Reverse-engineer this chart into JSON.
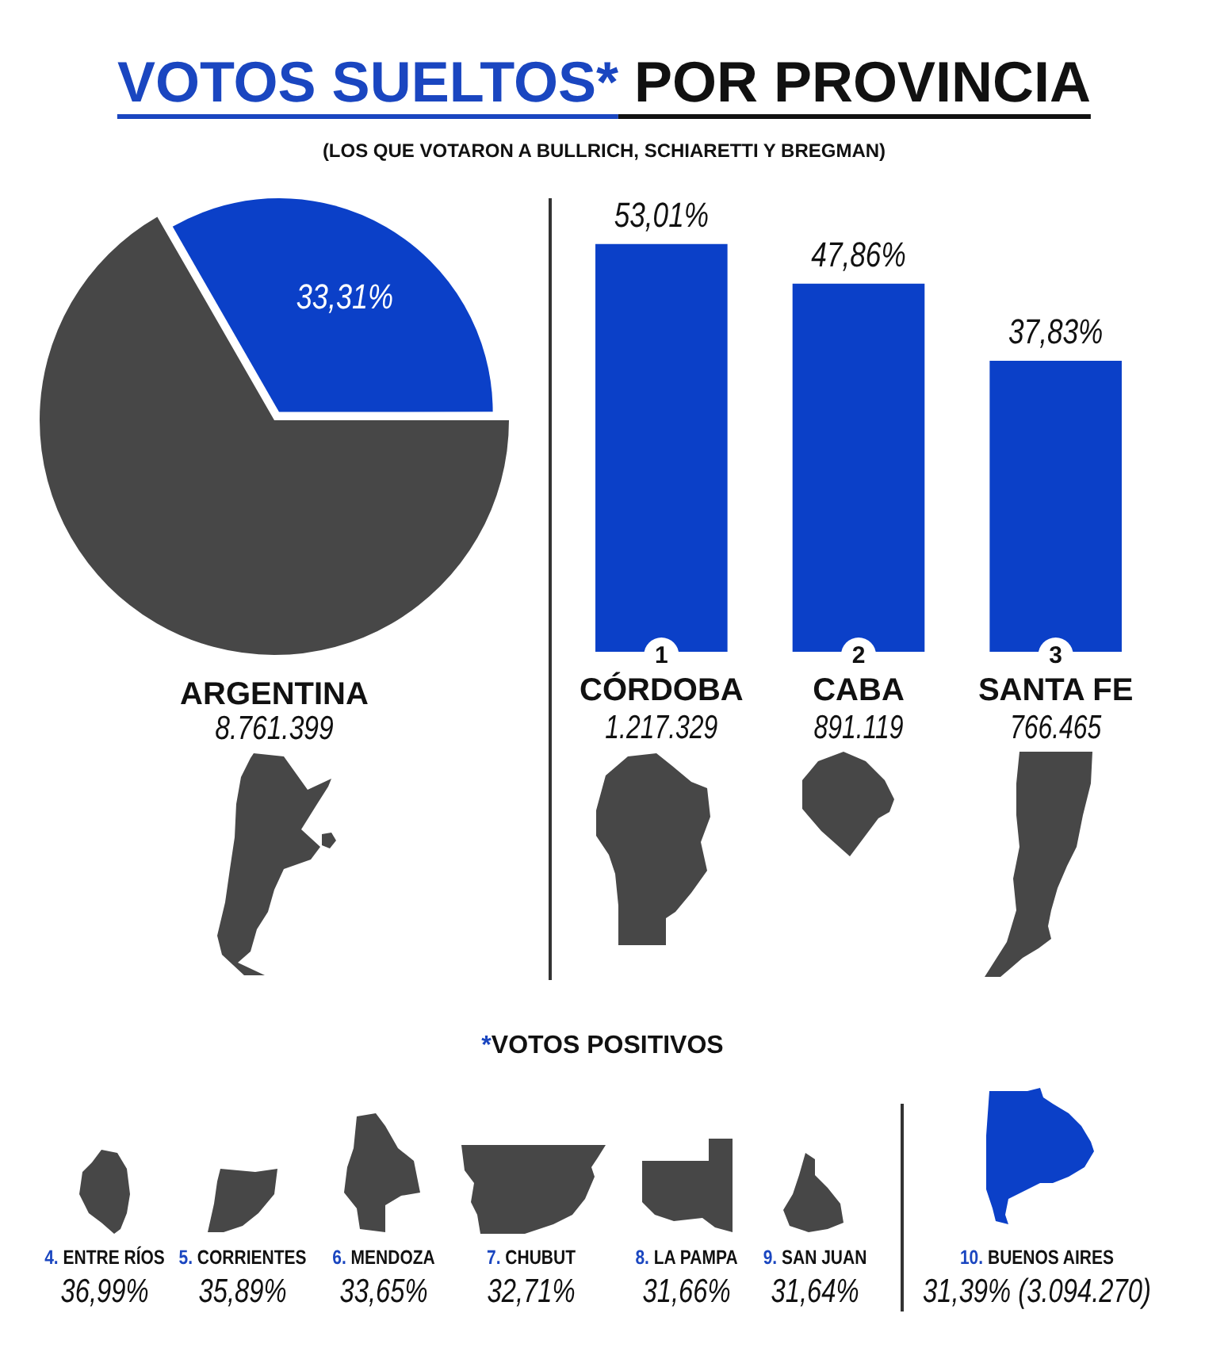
{
  "chart_data": [
    {
      "type": "pie",
      "title": "VOTOS SUELTOS* POR PROVINCIA",
      "subtitle": "(LOS QUE VOTARON A BULLRICH, SCHIARETTI Y BREGMAN)",
      "categories": [
        null,
        null
      ],
      "values": [
        33.31,
        66.69
      ],
      "colors": [
        "#0b40c8",
        "#474747"
      ],
      "value_labels": [
        "33,31%",
        null
      ],
      "annotations": [
        "ARGENTINA",
        "8.761.399"
      ]
    },
    {
      "type": "bar",
      "categories": [
        "CÓRDOBA",
        "CABA",
        "SANTA FE"
      ],
      "values": [
        53.01,
        47.86,
        37.83
      ],
      "color": "#0b40c8",
      "value_labels": [
        "53,01%",
        "47,86%",
        "37,83%"
      ],
      "tick_labels": "x",
      "annotations": [
        "1",
        "2",
        "3",
        "1.217.329",
        "891.119",
        "766.465"
      ]
    },
    {
      "type": "other",
      "title": "*VOTOS POSITIVOS",
      "annotations": [
        "4. ENTRE RÍOS",
        "36,99%",
        "5. CORRIENTES",
        "35,89%",
        "6. MENDOZA",
        "33,65%",
        "7. CHUBUT",
        "32,71%",
        "8. LA PAMPA",
        "31,66%",
        "9. SAN JUAN",
        "31,64%",
        "10. BUENOS AIRES",
        "31,39% (3.094.270)"
      ]
    }
  ]
}
